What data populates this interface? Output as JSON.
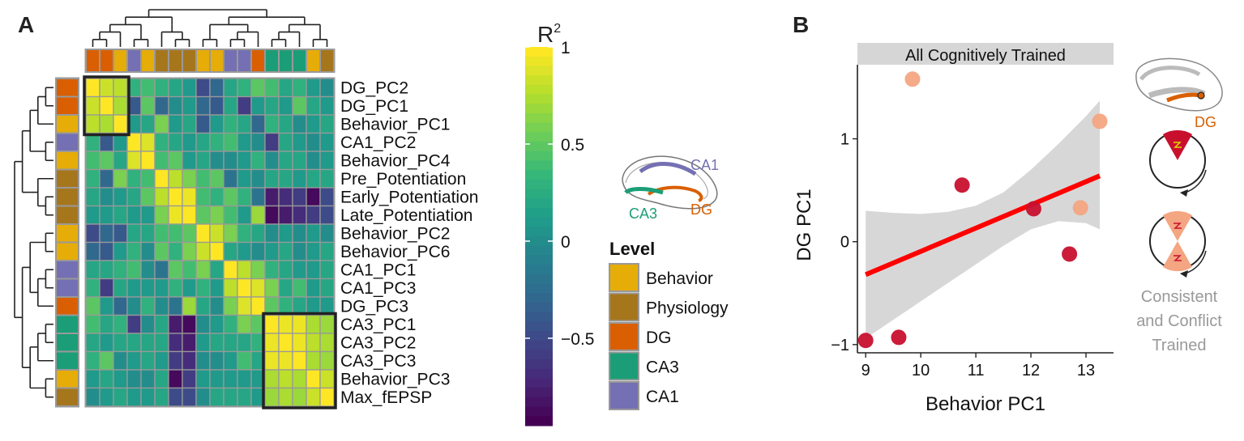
{
  "panel_a": {
    "label": "A",
    "rows": [
      "DG_PC2",
      "DG_PC1",
      "Behavior_PC1",
      "CA1_PC2",
      "Behavior_PC4",
      "Pre_Potentiation",
      "Early_Potentiation",
      "Late_Potentiation",
      "Behavior_PC2",
      "Behavior_PC6",
      "CA1_PC1",
      "CA1_PC3",
      "DG_PC3",
      "CA3_PC1",
      "CA3_PC2",
      "CA3_PC3",
      "Behavior_PC3",
      "Max_fEPSP"
    ],
    "row_levels": [
      "DG",
      "DG",
      "Behavior",
      "CA1",
      "Behavior",
      "Physiology",
      "Physiology",
      "Physiology",
      "Behavior",
      "Behavior",
      "CA1",
      "CA1",
      "DG",
      "CA3",
      "CA3",
      "CA3",
      "Behavior",
      "Physiology"
    ],
    "colorbar": {
      "title": "R",
      "title_sup": "2",
      "ticks": [
        {
          "v": 1,
          "label": "1"
        },
        {
          "v": 0.5,
          "label": "0.5"
        },
        {
          "v": 0,
          "label": "0"
        },
        {
          "v": -0.5,
          "label": "−0.5"
        }
      ],
      "range": [
        -0.95,
        1
      ]
    },
    "legend": {
      "title": "Level",
      "items": [
        {
          "name": "Behavior",
          "color": "#E6AC08"
        },
        {
          "name": "Physiology",
          "color": "#A6761D"
        },
        {
          "name": "DG",
          "color": "#D95F02"
        },
        {
          "name": "CA3",
          "color": "#1B9E77"
        },
        {
          "name": "CA1",
          "color": "#7570B3"
        }
      ]
    },
    "hippocampus_labels": {
      "ca1": "CA1",
      "ca3": "CA3",
      "dg": "DG"
    }
  },
  "chart_data": [
    {
      "type": "heatmap",
      "rows": [
        "DG_PC2",
        "DG_PC1",
        "Behavior_PC1",
        "CA1_PC2",
        "Behavior_PC4",
        "Pre_Potentiation",
        "Early_Potentiation",
        "Late_Potentiation",
        "Behavior_PC2",
        "Behavior_PC6",
        "CA1_PC1",
        "CA1_PC3",
        "DG_PC3",
        "CA3_PC1",
        "CA3_PC2",
        "CA3_PC3",
        "Behavior_PC3",
        "Max_fEPSP"
      ],
      "columns": [
        "DG_PC2",
        "DG_PC1",
        "Behavior_PC1",
        "CA1_PC2",
        "Behavior_PC4",
        "Pre_Potentiation",
        "Early_Potentiation",
        "Late_Potentiation",
        "Behavior_PC2",
        "Behavior_PC6",
        "CA1_PC1",
        "CA1_PC3",
        "DG_PC3",
        "CA3_PC1",
        "CA3_PC2",
        "CA3_PC3",
        "Behavior_PC3",
        "Max_fEPSP"
      ],
      "values": [
        [
          1,
          0.85,
          0.8,
          0.3,
          0.4,
          0.3,
          0.2,
          0.1,
          -0.5,
          -0.3,
          0.2,
          0.3,
          0.5,
          0.4,
          0.2,
          0.3,
          0.1,
          0.0
        ],
        [
          0.85,
          1,
          0.75,
          -0.4,
          0.5,
          -0.3,
          0.0,
          0.1,
          -0.3,
          -0.4,
          0.2,
          -0.6,
          0.1,
          0.2,
          0.1,
          0.5,
          0.2,
          0.1
        ],
        [
          0.8,
          0.75,
          1,
          0.1,
          0.2,
          0.6,
          0.1,
          0.2,
          -0.4,
          0.1,
          0.3,
          0.2,
          -0.3,
          0.3,
          0.2,
          0.0,
          0.1,
          0.2
        ],
        [
          0.3,
          -0.4,
          0.1,
          1,
          0.9,
          0.3,
          0.2,
          0.1,
          0.2,
          0.3,
          0.4,
          0.1,
          0.0,
          -0.6,
          0.2,
          0.1,
          0.0,
          0.1
        ],
        [
          0.4,
          0.5,
          0.2,
          0.9,
          1,
          0.4,
          0.5,
          0.1,
          0.2,
          0.0,
          0.0,
          0.1,
          0.3,
          0.0,
          0.2,
          0.2,
          0.0,
          0.1
        ],
        [
          0.3,
          -0.3,
          0.6,
          0.3,
          0.4,
          1,
          0.8,
          0.6,
          0.4,
          0.5,
          -0.2,
          0.1,
          0.0,
          0.2,
          0.2,
          0.1,
          0.2,
          0.2
        ],
        [
          0.2,
          0.0,
          0.1,
          0.2,
          0.5,
          0.8,
          1,
          0.95,
          0.4,
          0.3,
          0.5,
          0.3,
          -0.2,
          -0.8,
          -0.7,
          -0.6,
          -0.9,
          -0.5
        ],
        [
          0.1,
          0.1,
          0.2,
          0.1,
          0.1,
          0.6,
          0.95,
          1,
          0.5,
          0.6,
          0.4,
          0.1,
          0.7,
          -0.9,
          -0.8,
          -0.7,
          -0.6,
          -0.5
        ],
        [
          -0.5,
          -0.3,
          -0.4,
          0.2,
          0.2,
          0.4,
          0.4,
          0.5,
          1,
          0.85,
          0.6,
          0.3,
          0.2,
          0.0,
          0.1,
          0.0,
          0.1,
          0.0
        ],
        [
          -0.3,
          -0.4,
          0.1,
          0.3,
          0.0,
          0.5,
          0.3,
          0.6,
          0.85,
          1,
          0.2,
          0.1,
          0.0,
          0.1,
          0.2,
          0.0,
          0.1,
          0.2
        ],
        [
          0.2,
          0.2,
          0.3,
          0.4,
          0.0,
          -0.2,
          0.5,
          0.4,
          0.6,
          0.2,
          1,
          0.8,
          0.6,
          0.3,
          0.2,
          0.1,
          0.1,
          0.2
        ],
        [
          0.3,
          -0.6,
          0.2,
          0.1,
          0.1,
          0.1,
          0.3,
          0.1,
          0.3,
          0.1,
          0.8,
          1,
          0.9,
          0.6,
          0.2,
          0.4,
          0.1,
          0.2
        ],
        [
          0.5,
          0.1,
          -0.3,
          0.0,
          0.3,
          0.0,
          -0.2,
          0.7,
          0.2,
          0.0,
          0.6,
          0.9,
          1,
          0.5,
          0.3,
          0.2,
          0.1,
          0.1
        ],
        [
          0.4,
          0.2,
          0.3,
          -0.6,
          0.0,
          0.2,
          -0.8,
          -0.9,
          0.0,
          0.1,
          0.3,
          0.6,
          0.5,
          1,
          0.95,
          0.95,
          0.75,
          0.7
        ],
        [
          0.2,
          0.1,
          0.2,
          0.2,
          0.2,
          0.2,
          -0.7,
          -0.8,
          0.1,
          0.2,
          0.2,
          0.2,
          0.3,
          0.95,
          1,
          0.95,
          0.8,
          0.75
        ],
        [
          0.3,
          0.5,
          0.0,
          0.1,
          0.2,
          0.1,
          -0.6,
          -0.7,
          0.0,
          0.0,
          0.1,
          0.4,
          0.2,
          0.95,
          0.95,
          1,
          0.75,
          0.7
        ],
        [
          0.1,
          0.2,
          0.1,
          0.0,
          0.0,
          0.2,
          -0.9,
          -0.6,
          0.1,
          0.1,
          0.1,
          0.1,
          0.1,
          0.75,
          0.8,
          0.75,
          1,
          0.85
        ],
        [
          0.0,
          0.1,
          0.2,
          0.1,
          0.1,
          0.2,
          -0.5,
          -0.5,
          0.0,
          0.2,
          0.2,
          0.2,
          0.1,
          0.7,
          0.75,
          0.7,
          0.85,
          1
        ]
      ],
      "col_levels": [
        "DG",
        "DG",
        "Behavior",
        "CA1",
        "Behavior",
        "Physiology",
        "Physiology",
        "Physiology",
        "Behavior",
        "Behavior",
        "CA1",
        "CA1",
        "DG",
        "CA3",
        "CA3",
        "CA3",
        "Behavior",
        "Physiology"
      ],
      "color_scale": "viridis",
      "range": [
        -0.95,
        1
      ],
      "highlight_boxes": [
        {
          "rows": [
            0,
            2
          ],
          "cols": [
            0,
            2
          ]
        },
        {
          "rows": [
            13,
            17
          ],
          "cols": [
            13,
            17
          ]
        }
      ]
    },
    {
      "type": "scatter",
      "strip_title": "All Cognitively Trained",
      "xlabel": "Behavior PC1",
      "ylabel": "DG PC1",
      "xlim": [
        8.85,
        13.5
      ],
      "ylim": [
        -1.08,
        1.72
      ],
      "xticks": [
        9,
        10,
        11,
        12,
        13
      ],
      "yticks": [
        {
          "v": 1,
          "label": "1"
        },
        {
          "v": 0,
          "label": "0"
        },
        {
          "v": -1,
          "label": "−1"
        }
      ],
      "points": [
        {
          "x": 9.0,
          "y": -0.96,
          "group": "consistent"
        },
        {
          "x": 9.6,
          "y": -0.93,
          "group": "consistent"
        },
        {
          "x": 9.85,
          "y": 1.58,
          "group": "conflict"
        },
        {
          "x": 10.75,
          "y": 0.55,
          "group": "consistent"
        },
        {
          "x": 12.05,
          "y": 0.32,
          "group": "consistent"
        },
        {
          "x": 12.7,
          "y": -0.12,
          "group": "consistent"
        },
        {
          "x": 12.9,
          "y": 0.33,
          "group": "conflict"
        },
        {
          "x": 13.25,
          "y": 1.17,
          "group": "conflict"
        }
      ],
      "fit": {
        "x": [
          9.0,
          13.25
        ],
        "y": [
          -0.32,
          0.64
        ]
      },
      "ci_band": {
        "x": [
          9.0,
          9.5,
          10,
          10.5,
          11,
          11.5,
          12,
          12.5,
          13,
          13.25
        ],
        "upper": [
          0.3,
          0.28,
          0.27,
          0.29,
          0.35,
          0.48,
          0.7,
          0.95,
          1.22,
          1.37
        ],
        "lower": [
          -0.94,
          -0.76,
          -0.58,
          -0.4,
          -0.22,
          -0.04,
          0.12,
          0.2,
          0.18,
          0.12
        ]
      },
      "colors": {
        "consistent": "#C8102E",
        "conflict": "#F4A582",
        "fit": "#FF0000",
        "band": "#D3D3D3"
      }
    }
  ],
  "panel_b": {
    "label": "B",
    "dg_label": "DG",
    "training_note": [
      "Consistent",
      "and Conflict",
      "Trained"
    ]
  }
}
